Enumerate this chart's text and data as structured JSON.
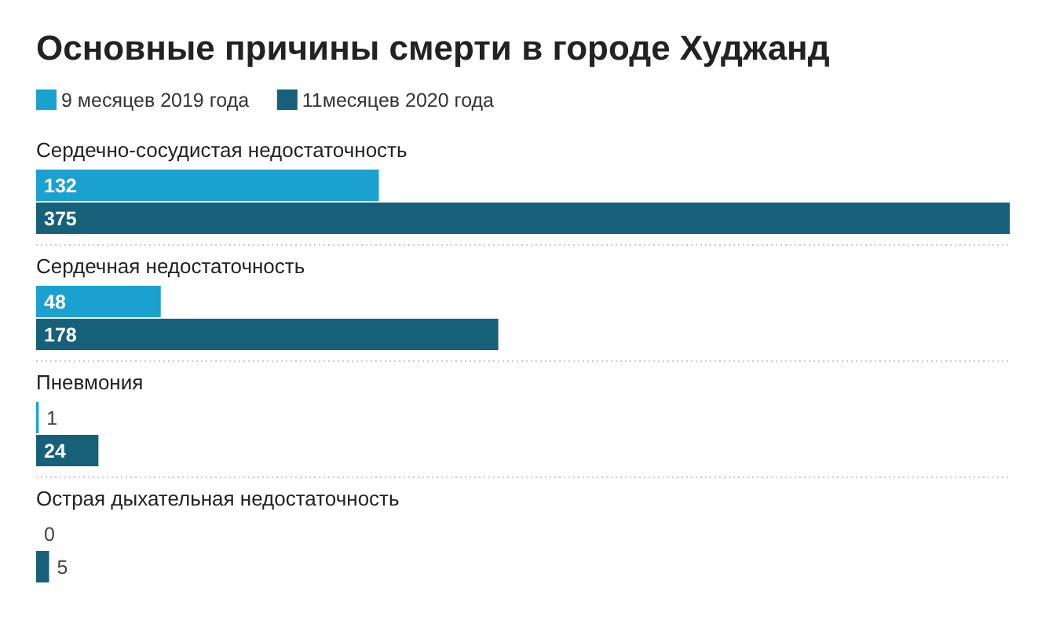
{
  "chart_data": {
    "type": "bar",
    "orientation": "horizontal",
    "title": "Основные причины смерти в городе Худжанд",
    "categories": [
      "Сердечно-сосудистая недостаточность",
      "Сердечная недостаточность",
      "Пневмония",
      "Острая дыхательная недостаточность"
    ],
    "series": [
      {
        "name": "9 месяцев 2019 года",
        "color": "#1ba1d0",
        "values": [
          132,
          48,
          1,
          0
        ]
      },
      {
        "name": "11месяцев 2020 года",
        "color": "#17607a",
        "values": [
          375,
          178,
          24,
          5
        ]
      }
    ],
    "data_labels": true,
    "legend": "top left"
  }
}
